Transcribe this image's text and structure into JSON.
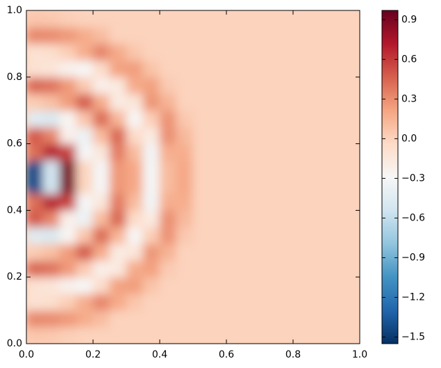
{
  "chart_data": {
    "type": "heatmap",
    "x": [
      0.025,
      0.075,
      0.125,
      0.175,
      0.225,
      0.275,
      0.325,
      0.375,
      0.425,
      0.475,
      0.525,
      0.575,
      0.625,
      0.675,
      0.725,
      0.775,
      0.825,
      0.875,
      0.925,
      0.975
    ],
    "y": [
      0.025,
      0.075,
      0.125,
      0.175,
      0.225,
      0.275,
      0.325,
      0.375,
      0.425,
      0.475,
      0.525,
      0.575,
      0.625,
      0.675,
      0.725,
      0.775,
      0.825,
      0.875,
      0.925,
      0.975
    ],
    "z": [
      [
        0.06,
        0.05,
        0.02,
        0,
        0,
        0,
        0,
        0,
        0,
        0,
        0,
        0,
        0,
        0,
        0,
        0,
        0,
        0,
        0,
        0
      ],
      [
        0.32,
        0.31,
        0.26,
        0.18,
        0.1,
        0,
        0,
        0,
        0,
        0,
        0,
        0,
        0,
        0,
        0,
        0,
        0,
        0,
        0,
        0
      ],
      [
        -0.1,
        -0.07,
        0.02,
        0.17,
        0.33,
        0.19,
        0.06,
        0,
        0,
        0,
        0,
        0,
        0,
        0,
        0,
        0,
        0,
        0,
        0,
        0
      ],
      [
        -0.1,
        -0.13,
        -0.24,
        -0.29,
        -0.06,
        0.22,
        0.24,
        0.07,
        0,
        0,
        0,
        0,
        0,
        0,
        0,
        0,
        0,
        0,
        0,
        0
      ],
      [
        0.44,
        0.4,
        0.26,
        0.04,
        -0.22,
        -0.17,
        0.18,
        0.23,
        0.04,
        0,
        0,
        0,
        0,
        0,
        0,
        0,
        0,
        0,
        0,
        0
      ],
      [
        0.03,
        0.09,
        0.24,
        0.48,
        0.18,
        -0.18,
        -0.14,
        0.27,
        0.15,
        0,
        0,
        0,
        0,
        0,
        0,
        0,
        0,
        0,
        0,
        0
      ],
      [
        -0.44,
        -0.49,
        -0.27,
        0.06,
        0.42,
        0.14,
        -0.28,
        0.02,
        0.28,
        0.05,
        0,
        0,
        0,
        0,
        0,
        0,
        0,
        0,
        0,
        0
      ],
      [
        0.49,
        0.33,
        -0.22,
        -0.36,
        0.11,
        0.44,
        -0.05,
        -0.18,
        0.29,
        0.12,
        0,
        0,
        0,
        0,
        0,
        0,
        0,
        0,
        0,
        0
      ],
      [
        0.41,
        0.68,
        0.57,
        -0.3,
        -0.15,
        0.36,
        0.11,
        -0.32,
        0.17,
        0.17,
        0,
        0,
        0,
        0,
        0,
        0,
        0,
        0,
        0,
        0
      ],
      [
        -1.42,
        -0.53,
        0.91,
        -0.01,
        -0.3,
        0.26,
        0.2,
        -0.31,
        0.11,
        0.2,
        0,
        0,
        0,
        0,
        0,
        0,
        0,
        0,
        0,
        0
      ],
      [
        -1.42,
        -0.53,
        0.91,
        -0.01,
        -0.3,
        0.26,
        0.2,
        -0.31,
        0.11,
        0.2,
        0,
        0,
        0,
        0,
        0,
        0,
        0,
        0,
        0,
        0
      ],
      [
        0.41,
        0.68,
        0.57,
        -0.3,
        -0.15,
        0.36,
        0.11,
        -0.32,
        0.17,
        0.17,
        0,
        0,
        0,
        0,
        0,
        0,
        0,
        0,
        0,
        0
      ],
      [
        0.49,
        0.33,
        -0.22,
        -0.36,
        0.11,
        0.44,
        -0.05,
        -0.18,
        0.29,
        0.12,
        0,
        0,
        0,
        0,
        0,
        0,
        0,
        0,
        0,
        0
      ],
      [
        -0.44,
        -0.49,
        -0.27,
        0.06,
        0.42,
        0.14,
        -0.28,
        0.02,
        0.28,
        0.05,
        0,
        0,
        0,
        0,
        0,
        0,
        0,
        0,
        0,
        0
      ],
      [
        0.03,
        0.09,
        0.24,
        0.48,
        0.18,
        -0.18,
        -0.14,
        0.27,
        0.15,
        0,
        0,
        0,
        0,
        0,
        0,
        0,
        0,
        0,
        0,
        0
      ],
      [
        0.44,
        0.4,
        0.26,
        0.04,
        -0.22,
        -0.17,
        0.18,
        0.23,
        0.04,
        0,
        0,
        0,
        0,
        0,
        0,
        0,
        0,
        0,
        0,
        0
      ],
      [
        -0.1,
        -0.13,
        -0.24,
        -0.29,
        -0.06,
        0.22,
        0.24,
        0.07,
        0,
        0,
        0,
        0,
        0,
        0,
        0,
        0,
        0,
        0,
        0,
        0
      ],
      [
        -0.1,
        -0.07,
        0.02,
        0.17,
        0.33,
        0.19,
        0.06,
        0,
        0,
        0,
        0,
        0,
        0,
        0,
        0,
        0,
        0,
        0,
        0,
        0
      ],
      [
        0.32,
        0.31,
        0.26,
        0.18,
        0.1,
        0,
        0,
        0,
        0,
        0,
        0,
        0,
        0,
        0,
        0,
        0,
        0,
        0,
        0,
        0
      ],
      [
        0.06,
        0.05,
        0.02,
        0,
        0,
        0,
        0,
        0,
        0,
        0,
        0,
        0,
        0,
        0,
        0,
        0,
        0,
        0,
        0,
        0
      ]
    ],
    "xlim": [
      0,
      1
    ],
    "ylim": [
      0,
      1
    ],
    "xticks": [
      {
        "value": 0,
        "label": "0.0"
      },
      0.2,
      0.4,
      0.6,
      0.8,
      {
        "value": 1,
        "label": "1.0"
      }
    ],
    "yticks": [
      {
        "value": 0,
        "label": "0.0"
      },
      0.2,
      0.4,
      0.6,
      0.8,
      {
        "value": 1,
        "label": "1.0"
      }
    ],
    "clim": [
      -1.55,
      0.97
    ],
    "cticks": [
      0.9,
      0.6,
      0.3,
      {
        "value": 0,
        "label": "0.0"
      },
      {
        "value": -0.3,
        "label": "−0.3"
      },
      {
        "value": -0.6,
        "label": "−0.6"
      },
      {
        "value": -0.9,
        "label": "−0.9"
      },
      {
        "value": -1.2,
        "label": "−1.2"
      },
      {
        "value": -1.5,
        "label": "−1.5"
      }
    ],
    "colormap": [
      "#053061",
      "#2166ac",
      "#4393c3",
      "#92c5de",
      "#d1e5f0",
      "#f7f7f7",
      "#fddbc7",
      "#f4a582",
      "#d6604d",
      "#b2182b",
      "#67001f"
    ]
  }
}
